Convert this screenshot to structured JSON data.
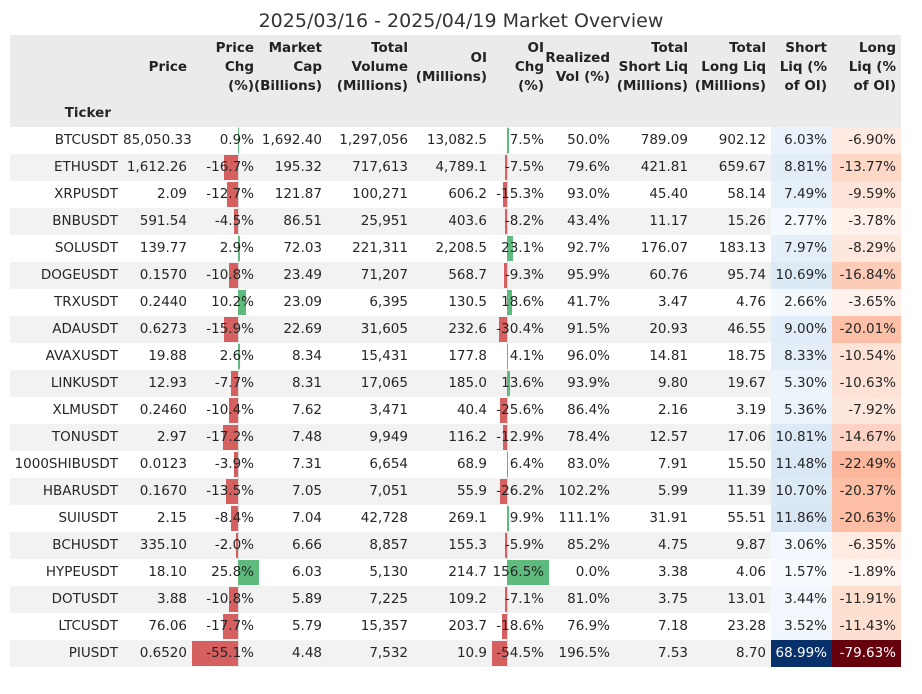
{
  "title": "2025/03/16 - 2025/04/19 Market Overview",
  "index_header": "Ticker",
  "chart_data": {
    "type": "table",
    "columns": [
      "Price",
      "Price\nChg\n(%)",
      "Market\nCap\n(Billions)",
      "Total\nVolume\n(Millions)",
      "OI\n(Millions)",
      "OI\nChg\n(%)",
      "Realized\nVol (%)",
      "Total\nShort Liq\n(Millions)",
      "Total\nLong Liq\n(Millions)",
      "Short\nLiq (%\nof OI)",
      "Long\nLiq (%\nof OI)"
    ],
    "rows": [
      {
        "ticker": "BTCUSDT",
        "price": "85,050.33",
        "price_chg": 0.9,
        "mcap": "1,692.40",
        "volume": "1,297,056",
        "oi": "13,082.5",
        "oi_chg": 7.5,
        "vol": "50.0%",
        "short_liq": "789.09",
        "long_liq": "902.12",
        "short_pct": 6.03,
        "long_pct": -6.9
      },
      {
        "ticker": "ETHUSDT",
        "price": "1,612.26",
        "price_chg": -16.7,
        "mcap": "195.32",
        "volume": "717,613",
        "oi": "4,789.1",
        "oi_chg": -7.5,
        "vol": "79.6%",
        "short_liq": "421.81",
        "long_liq": "659.67",
        "short_pct": 8.81,
        "long_pct": -13.77
      },
      {
        "ticker": "XRPUSDT",
        "price": "2.09",
        "price_chg": -12.7,
        "mcap": "121.87",
        "volume": "100,271",
        "oi": "606.2",
        "oi_chg": -15.3,
        "vol": "93.0%",
        "short_liq": "45.40",
        "long_liq": "58.14",
        "short_pct": 7.49,
        "long_pct": -9.59
      },
      {
        "ticker": "BNBUSDT",
        "price": "591.54",
        "price_chg": -4.5,
        "mcap": "86.51",
        "volume": "25,951",
        "oi": "403.6",
        "oi_chg": -8.2,
        "vol": "43.4%",
        "short_liq": "11.17",
        "long_liq": "15.26",
        "short_pct": 2.77,
        "long_pct": -3.78
      },
      {
        "ticker": "SOLUSDT",
        "price": "139.77",
        "price_chg": 2.9,
        "mcap": "72.03",
        "volume": "221,311",
        "oi": "2,208.5",
        "oi_chg": 23.1,
        "vol": "92.7%",
        "short_liq": "176.07",
        "long_liq": "183.13",
        "short_pct": 7.97,
        "long_pct": -8.29
      },
      {
        "ticker": "DOGEUSDT",
        "price": "0.1570",
        "price_chg": -10.8,
        "mcap": "23.49",
        "volume": "71,207",
        "oi": "568.7",
        "oi_chg": -9.3,
        "vol": "95.9%",
        "short_liq": "60.76",
        "long_liq": "95.74",
        "short_pct": 10.69,
        "long_pct": -16.84
      },
      {
        "ticker": "TRXUSDT",
        "price": "0.2440",
        "price_chg": 10.2,
        "mcap": "23.09",
        "volume": "6,395",
        "oi": "130.5",
        "oi_chg": 18.6,
        "vol": "41.7%",
        "short_liq": "3.47",
        "long_liq": "4.76",
        "short_pct": 2.66,
        "long_pct": -3.65
      },
      {
        "ticker": "ADAUSDT",
        "price": "0.6273",
        "price_chg": -15.9,
        "mcap": "22.69",
        "volume": "31,605",
        "oi": "232.6",
        "oi_chg": -30.4,
        "vol": "91.5%",
        "short_liq": "20.93",
        "long_liq": "46.55",
        "short_pct": 9.0,
        "long_pct": -20.01
      },
      {
        "ticker": "AVAXUSDT",
        "price": "19.88",
        "price_chg": 2.6,
        "mcap": "8.34",
        "volume": "15,431",
        "oi": "177.8",
        "oi_chg": 4.1,
        "vol": "96.0%",
        "short_liq": "14.81",
        "long_liq": "18.75",
        "short_pct": 8.33,
        "long_pct": -10.54
      },
      {
        "ticker": "LINKUSDT",
        "price": "12.93",
        "price_chg": -7.7,
        "mcap": "8.31",
        "volume": "17,065",
        "oi": "185.0",
        "oi_chg": 13.6,
        "vol": "93.9%",
        "short_liq": "9.80",
        "long_liq": "19.67",
        "short_pct": 5.3,
        "long_pct": -10.63
      },
      {
        "ticker": "XLMUSDT",
        "price": "0.2460",
        "price_chg": -10.4,
        "mcap": "7.62",
        "volume": "3,471",
        "oi": "40.4",
        "oi_chg": -25.6,
        "vol": "86.4%",
        "short_liq": "2.16",
        "long_liq": "3.19",
        "short_pct": 5.36,
        "long_pct": -7.92
      },
      {
        "ticker": "TONUSDT",
        "price": "2.97",
        "price_chg": -17.2,
        "mcap": "7.48",
        "volume": "9,949",
        "oi": "116.2",
        "oi_chg": -12.9,
        "vol": "78.4%",
        "short_liq": "12.57",
        "long_liq": "17.06",
        "short_pct": 10.81,
        "long_pct": -14.67
      },
      {
        "ticker": "1000SHIBUSDT",
        "price": "0.0123",
        "price_chg": -3.9,
        "mcap": "7.31",
        "volume": "6,654",
        "oi": "68.9",
        "oi_chg": 6.4,
        "vol": "83.0%",
        "short_liq": "7.91",
        "long_liq": "15.50",
        "short_pct": 11.48,
        "long_pct": -22.49
      },
      {
        "ticker": "HBARUSDT",
        "price": "0.1670",
        "price_chg": -13.5,
        "mcap": "7.05",
        "volume": "7,051",
        "oi": "55.9",
        "oi_chg": -26.2,
        "vol": "102.2%",
        "short_liq": "5.99",
        "long_liq": "11.39",
        "short_pct": 10.7,
        "long_pct": -20.37
      },
      {
        "ticker": "SUIUSDT",
        "price": "2.15",
        "price_chg": -8.4,
        "mcap": "7.04",
        "volume": "42,728",
        "oi": "269.1",
        "oi_chg": 9.9,
        "vol": "111.1%",
        "short_liq": "31.91",
        "long_liq": "55.51",
        "short_pct": 11.86,
        "long_pct": -20.63
      },
      {
        "ticker": "BCHUSDT",
        "price": "335.10",
        "price_chg": -2.0,
        "mcap": "6.66",
        "volume": "8,857",
        "oi": "155.3",
        "oi_chg": -5.9,
        "vol": "85.2%",
        "short_liq": "4.75",
        "long_liq": "9.87",
        "short_pct": 3.06,
        "long_pct": -6.35
      },
      {
        "ticker": "HYPEUSDT",
        "price": "18.10",
        "price_chg": 25.8,
        "mcap": "6.03",
        "volume": "5,130",
        "oi": "214.7",
        "oi_chg": 156.5,
        "vol": "0.0%",
        "short_liq": "3.38",
        "long_liq": "4.06",
        "short_pct": 1.57,
        "long_pct": -1.89
      },
      {
        "ticker": "DOTUSDT",
        "price": "3.88",
        "price_chg": -10.8,
        "mcap": "5.89",
        "volume": "7,225",
        "oi": "109.2",
        "oi_chg": -7.1,
        "vol": "81.0%",
        "short_liq": "3.75",
        "long_liq": "13.01",
        "short_pct": 3.44,
        "long_pct": -11.91
      },
      {
        "ticker": "LTCUSDT",
        "price": "76.06",
        "price_chg": -17.7,
        "mcap": "5.79",
        "volume": "15,357",
        "oi": "203.7",
        "oi_chg": -18.6,
        "vol": "76.9%",
        "short_liq": "7.18",
        "long_liq": "23.28",
        "short_pct": 3.52,
        "long_pct": -11.43
      },
      {
        "ticker": "PIUSDT",
        "price": "0.6520",
        "price_chg": -55.1,
        "mcap": "4.48",
        "volume": "7,532",
        "oi": "10.9",
        "oi_chg": -54.5,
        "vol": "196.5%",
        "short_liq": "7.53",
        "long_liq": "8.70",
        "short_pct": 68.99,
        "long_pct": -79.63
      }
    ]
  },
  "colors": {
    "positive_bar": "#5fba7d",
    "negative_bar": "#d65f5f",
    "short_liq_scale": "#08306b",
    "long_liq_scale": "#67000d"
  }
}
